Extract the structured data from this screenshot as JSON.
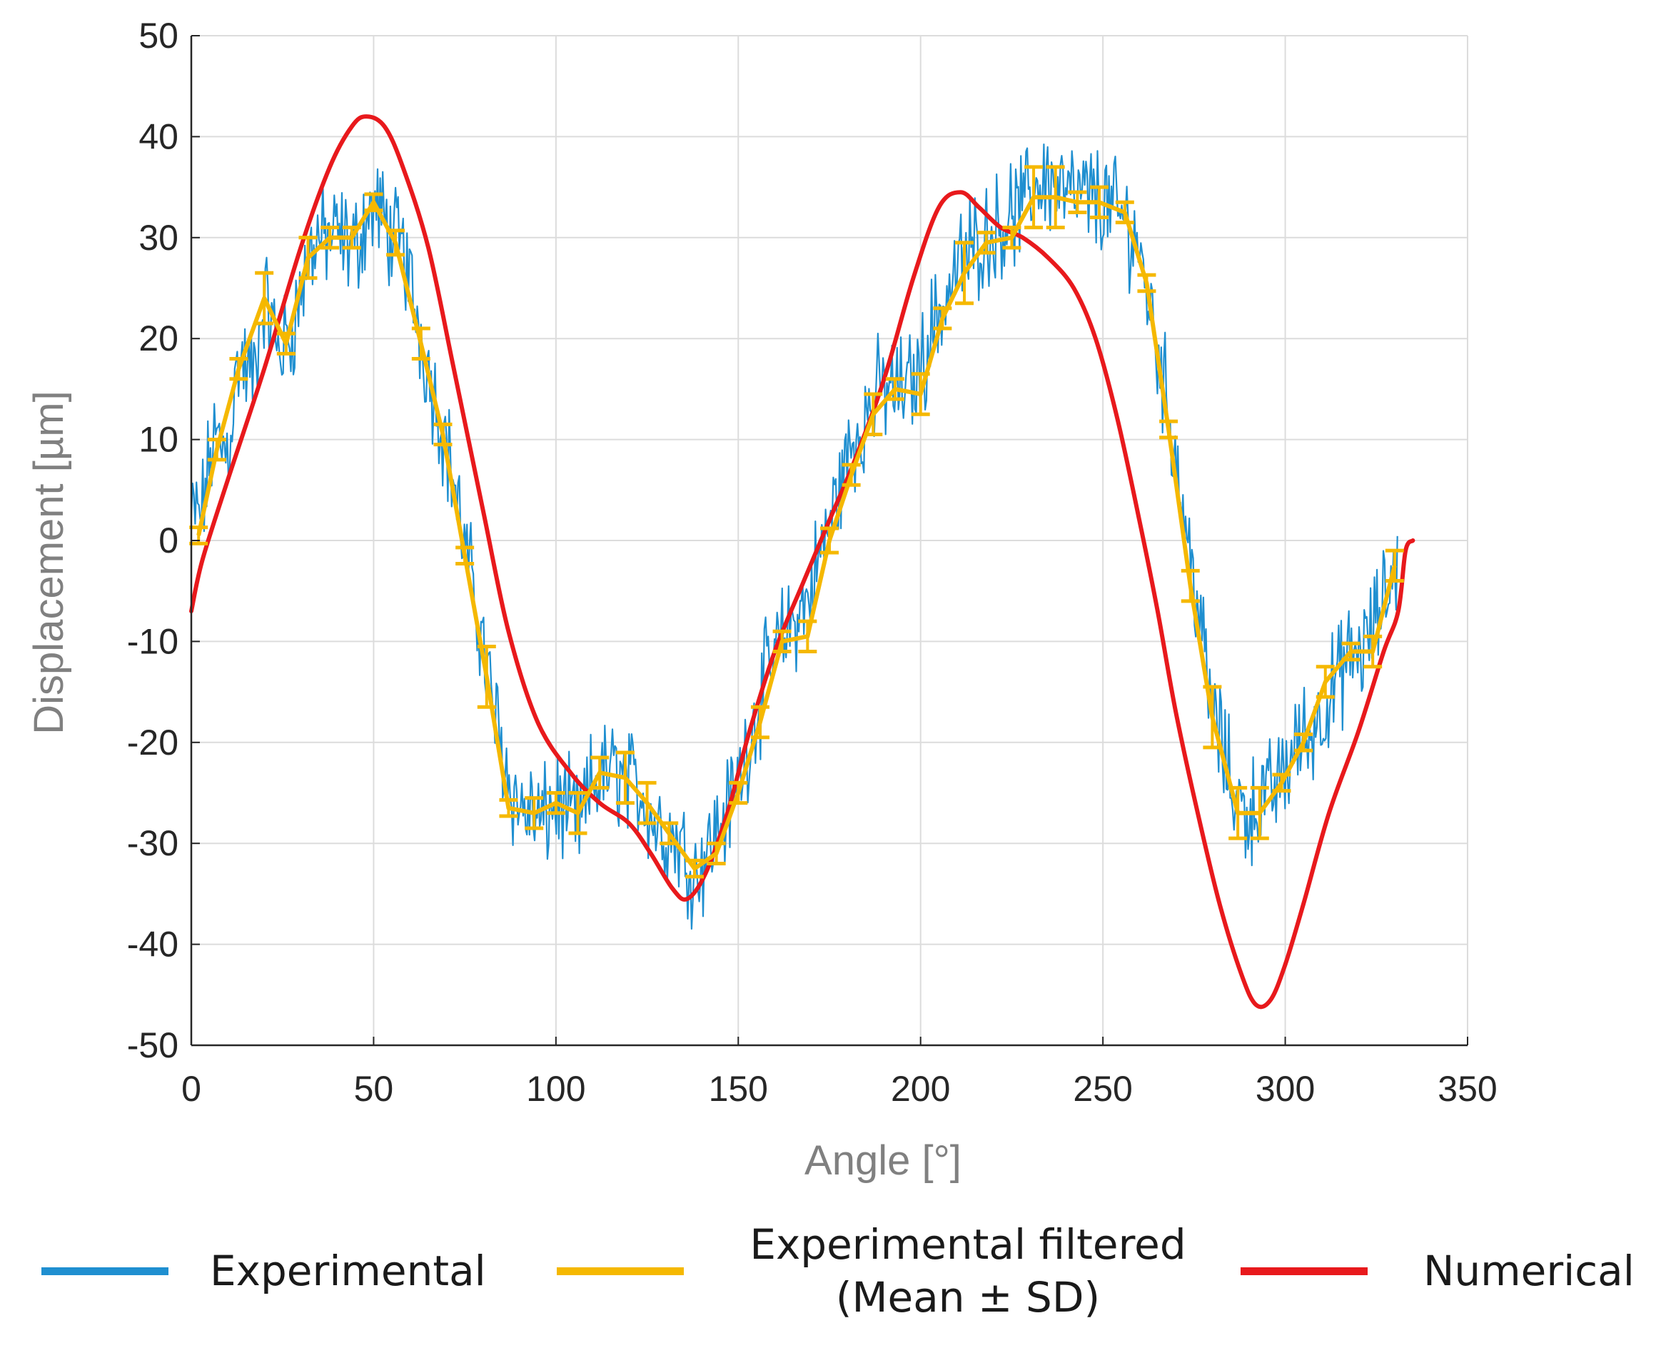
{
  "chart_data": {
    "type": "line",
    "title": "",
    "xlabel": "Angle [°]",
    "ylabel": "Displacement [µm]",
    "xlim": [
      0,
      350
    ],
    "ylim": [
      -50,
      50
    ],
    "xticks": [
      0,
      50,
      100,
      150,
      200,
      250,
      300,
      350
    ],
    "yticks": [
      -50,
      -40,
      -30,
      -20,
      -10,
      0,
      10,
      20,
      30,
      40,
      50
    ],
    "grid": true,
    "legend_position": "bottom",
    "series": [
      {
        "name": "Experimental",
        "color": "#1f8fd0",
        "style": "noisy-line",
        "points": [
          [
            0,
            2
          ],
          [
            3,
            3
          ],
          [
            6,
            10
          ],
          [
            10,
            9
          ],
          [
            13,
            18
          ],
          [
            17,
            16
          ],
          [
            20,
            24
          ],
          [
            24,
            19
          ],
          [
            27,
            20
          ],
          [
            31,
            26
          ],
          [
            34,
            30
          ],
          [
            38,
            30
          ],
          [
            41,
            30
          ],
          [
            45,
            29
          ],
          [
            48,
            32
          ],
          [
            51,
            33
          ],
          [
            55,
            30
          ],
          [
            58,
            29
          ],
          [
            62,
            22
          ],
          [
            65,
            17
          ],
          [
            69,
            11
          ],
          [
            72,
            6
          ],
          [
            75,
            -1
          ],
          [
            79,
            -8
          ],
          [
            82,
            -15
          ],
          [
            86,
            -22
          ],
          [
            89,
            -26
          ],
          [
            93,
            -27
          ],
          [
            96,
            -28
          ],
          [
            100,
            -26
          ],
          [
            103,
            -27
          ],
          [
            107,
            -28
          ],
          [
            110,
            -24
          ],
          [
            114,
            -23
          ],
          [
            117,
            -23
          ],
          [
            120,
            -24
          ],
          [
            124,
            -25
          ],
          [
            127,
            -28
          ],
          [
            131,
            -29
          ],
          [
            134,
            -30
          ],
          [
            138,
            -33
          ],
          [
            141,
            -31
          ],
          [
            145,
            -28
          ],
          [
            148,
            -26
          ],
          [
            152,
            -21
          ],
          [
            155,
            -17
          ],
          [
            158,
            -13
          ],
          [
            162,
            -10
          ],
          [
            165,
            -8
          ],
          [
            169,
            -6
          ],
          [
            172,
            -2
          ],
          [
            176,
            3
          ],
          [
            179,
            7
          ],
          [
            183,
            11
          ],
          [
            186,
            13
          ],
          [
            189,
            15
          ],
          [
            193,
            15
          ],
          [
            196,
            15
          ],
          [
            200,
            17
          ],
          [
            203,
            21
          ],
          [
            207,
            24
          ],
          [
            210,
            27
          ],
          [
            214,
            29
          ],
          [
            217,
            30
          ],
          [
            221,
            31
          ],
          [
            224,
            32
          ],
          [
            228,
            33
          ],
          [
            231,
            35
          ],
          [
            234,
            36
          ],
          [
            238,
            35
          ],
          [
            241,
            34
          ],
          [
            245,
            34
          ],
          [
            248,
            34
          ],
          [
            252,
            33
          ],
          [
            255,
            32
          ],
          [
            259,
            30
          ],
          [
            262,
            25
          ],
          [
            265,
            19
          ],
          [
            269,
            11
          ],
          [
            272,
            3
          ],
          [
            276,
            -6
          ],
          [
            279,
            -15
          ],
          [
            283,
            -21
          ],
          [
            286,
            -25
          ],
          [
            289,
            -27
          ],
          [
            293,
            -26
          ],
          [
            296,
            -25
          ],
          [
            300,
            -23
          ],
          [
            303,
            -20
          ],
          [
            307,
            -19
          ],
          [
            310,
            -17
          ],
          [
            314,
            -14
          ],
          [
            317,
            -12
          ],
          [
            321,
            -11
          ],
          [
            324,
            -9
          ],
          [
            328,
            -5
          ],
          [
            331,
            -1
          ]
        ]
      },
      {
        "name": "Experimental filtered\n(Mean ± SD)",
        "color": "#f5b800",
        "style": "line-with-errorbars",
        "points": [
          {
            "x": 2,
            "y": 0.5,
            "sd": 0.8
          },
          {
            "x": 7,
            "y": 9,
            "sd": 1
          },
          {
            "x": 13,
            "y": 17,
            "sd": 1
          },
          {
            "x": 20,
            "y": 24,
            "sd": 2.5
          },
          {
            "x": 26,
            "y": 19.5,
            "sd": 1
          },
          {
            "x": 32,
            "y": 28,
            "sd": 2
          },
          {
            "x": 38,
            "y": 30,
            "sd": 1
          },
          {
            "x": 44,
            "y": 30,
            "sd": 1
          },
          {
            "x": 50,
            "y": 33.5,
            "sd": 0.8
          },
          {
            "x": 56,
            "y": 29.5,
            "sd": 1.2
          },
          {
            "x": 63,
            "y": 19.5,
            "sd": 1.5
          },
          {
            "x": 69,
            "y": 10.5,
            "sd": 1
          },
          {
            "x": 75,
            "y": -1.5,
            "sd": 0.8
          },
          {
            "x": 81,
            "y": -13.5,
            "sd": 3
          },
          {
            "x": 87,
            "y": -26.5,
            "sd": 0.8
          },
          {
            "x": 94,
            "y": -27,
            "sd": 1.5
          },
          {
            "x": 100,
            "y": -26,
            "sd": 1
          },
          {
            "x": 106,
            "y": -27,
            "sd": 2
          },
          {
            "x": 112,
            "y": -23,
            "sd": 1.5
          },
          {
            "x": 119,
            "y": -23.5,
            "sd": 2.5
          },
          {
            "x": 125,
            "y": -26,
            "sd": 2
          },
          {
            "x": 131,
            "y": -29,
            "sd": 1
          },
          {
            "x": 138,
            "y": -32.5,
            "sd": 0.8
          },
          {
            "x": 144,
            "y": -31,
            "sd": 1
          },
          {
            "x": 150,
            "y": -25,
            "sd": 1
          },
          {
            "x": 156,
            "y": -18,
            "sd": 1.5
          },
          {
            "x": 162,
            "y": -10,
            "sd": 1
          },
          {
            "x": 169,
            "y": -9.5,
            "sd": 1.5
          },
          {
            "x": 175,
            "y": 0,
            "sd": 1.2
          },
          {
            "x": 181,
            "y": 6.5,
            "sd": 1
          },
          {
            "x": 187,
            "y": 12.5,
            "sd": 2
          },
          {
            "x": 193,
            "y": 15,
            "sd": 1
          },
          {
            "x": 200,
            "y": 14.5,
            "sd": 2
          },
          {
            "x": 206,
            "y": 22,
            "sd": 1
          },
          {
            "x": 212,
            "y": 26.5,
            "sd": 3
          },
          {
            "x": 218,
            "y": 29.5,
            "sd": 1
          },
          {
            "x": 225,
            "y": 30,
            "sd": 1
          },
          {
            "x": 231,
            "y": 34,
            "sd": 3
          },
          {
            "x": 237,
            "y": 34,
            "sd": 3
          },
          {
            "x": 243,
            "y": 33.5,
            "sd": 1
          },
          {
            "x": 249,
            "y": 33.5,
            "sd": 1.5
          },
          {
            "x": 256,
            "y": 32.5,
            "sd": 1
          },
          {
            "x": 262,
            "y": 25.5,
            "sd": 0.8
          },
          {
            "x": 268,
            "y": 11,
            "sd": 0.8
          },
          {
            "x": 274,
            "y": -4.5,
            "sd": 1.5
          },
          {
            "x": 280,
            "y": -17.5,
            "sd": 3
          },
          {
            "x": 287,
            "y": -27,
            "sd": 2.5
          },
          {
            "x": 293,
            "y": -27,
            "sd": 2.5
          },
          {
            "x": 299,
            "y": -24,
            "sd": 0.8
          },
          {
            "x": 305,
            "y": -20,
            "sd": 0.8
          },
          {
            "x": 311,
            "y": -14,
            "sd": 1.5
          },
          {
            "x": 318,
            "y": -11,
            "sd": 0.8
          },
          {
            "x": 324,
            "y": -11,
            "sd": 1.5
          },
          {
            "x": 330,
            "y": -2.5,
            "sd": 1.5
          }
        ]
      },
      {
        "name": "Numerical",
        "color": "#e8191c",
        "style": "smooth-line",
        "points": [
          [
            0,
            -7
          ],
          [
            3,
            -2
          ],
          [
            10,
            6
          ],
          [
            20,
            17
          ],
          [
            30,
            29
          ],
          [
            38,
            37
          ],
          [
            44,
            41
          ],
          [
            48,
            42
          ],
          [
            53,
            41
          ],
          [
            58,
            37
          ],
          [
            65,
            29
          ],
          [
            72,
            17
          ],
          [
            80,
            3
          ],
          [
            87,
            -9
          ],
          [
            95,
            -18
          ],
          [
            104,
            -23
          ],
          [
            112,
            -26
          ],
          [
            120,
            -28
          ],
          [
            126,
            -31
          ],
          [
            132,
            -34.5
          ],
          [
            136,
            -35.5
          ],
          [
            141,
            -33
          ],
          [
            147,
            -27
          ],
          [
            153,
            -19
          ],
          [
            160,
            -11
          ],
          [
            168,
            -4
          ],
          [
            175,
            2
          ],
          [
            182,
            8
          ],
          [
            190,
            16
          ],
          [
            198,
            26
          ],
          [
            205,
            33
          ],
          [
            211,
            34.5
          ],
          [
            216,
            33
          ],
          [
            222,
            31
          ],
          [
            228,
            30
          ],
          [
            235,
            28
          ],
          [
            242,
            25
          ],
          [
            248,
            20
          ],
          [
            254,
            12
          ],
          [
            260,
            2
          ],
          [
            265,
            -7
          ],
          [
            270,
            -17
          ],
          [
            276,
            -27
          ],
          [
            282,
            -36
          ],
          [
            288,
            -43
          ],
          [
            292,
            -46
          ],
          [
            296,
            -45.5
          ],
          [
            300,
            -42
          ],
          [
            305,
            -36
          ],
          [
            312,
            -27
          ],
          [
            320,
            -19
          ],
          [
            327,
            -11
          ],
          [
            331,
            -7
          ],
          [
            333,
            -1
          ],
          [
            335,
            0
          ]
        ]
      }
    ]
  }
}
